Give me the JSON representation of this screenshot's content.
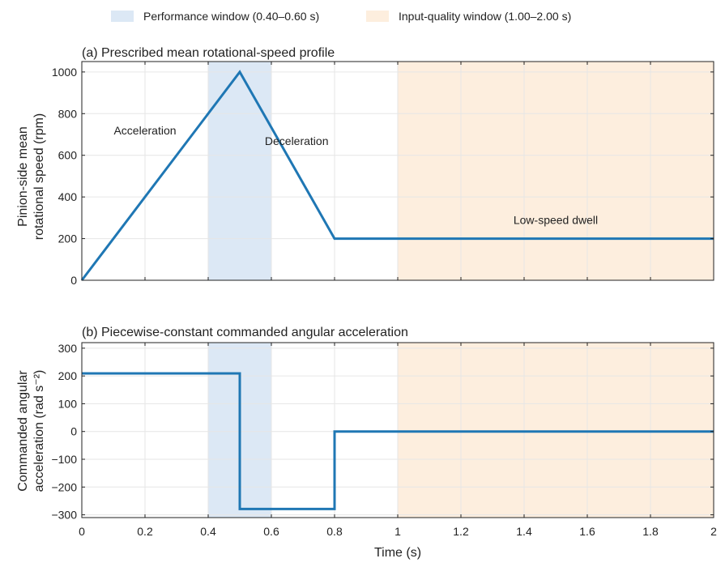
{
  "legend": {
    "items": [
      {
        "label": "Performance window (0.40–0.60 s)",
        "color": "#dce8f5"
      },
      {
        "label": "Input-quality window (1.00–2.00 s)",
        "color": "#fdeede"
      }
    ]
  },
  "colors": {
    "line": "#1f77b4",
    "performance_window": "#dce8f5",
    "input_window": "#fdeede",
    "grid": "#e6e6e6",
    "axis": "#222222"
  },
  "chart_data": [
    {
      "type": "line",
      "title": "(a) Prescribed mean rotational-speed profile",
      "xlabel": "",
      "ylabel_lines": [
        "Pinion-side mean",
        "rotational speed (rpm)"
      ],
      "xlim": [
        0,
        2
      ],
      "ylim": [
        0,
        1050
      ],
      "xticks": [
        0,
        0.2,
        0.4,
        0.6,
        0.8,
        1,
        1.2,
        1.4,
        1.6,
        1.8,
        2
      ],
      "yticks": [
        0,
        200,
        400,
        600,
        800,
        1000
      ],
      "ytick_labels": [
        "0",
        "200",
        "400",
        "600",
        "800",
        "1000"
      ],
      "show_xtick_labels": false,
      "grid": true,
      "shaded_regions": [
        {
          "x": [
            0.4,
            0.6
          ],
          "color": "#dce8f5"
        },
        {
          "x": [
            1.0,
            2.0
          ],
          "color": "#fdeede"
        }
      ],
      "series": [
        {
          "x": [
            0,
            0.5,
            0.8,
            2.0
          ],
          "y": [
            0,
            1000,
            200,
            200
          ]
        }
      ],
      "annotations": [
        {
          "text": "Acceleration",
          "x": 0.2,
          "y": 700
        },
        {
          "text": "Deceleration",
          "x": 0.68,
          "y": 650
        },
        {
          "text": "Low-speed dwell",
          "x": 1.5,
          "y": 270
        }
      ]
    },
    {
      "type": "line",
      "title": "(b) Piecewise-constant commanded angular acceleration",
      "xlabel": "Time (s)",
      "ylabel_lines": [
        "Commanded angular",
        "acceleration (rad s⁻²)"
      ],
      "xlim": [
        0,
        2
      ],
      "ylim": [
        -310,
        320
      ],
      "xticks": [
        0,
        0.2,
        0.4,
        0.6,
        0.8,
        1,
        1.2,
        1.4,
        1.6,
        1.8,
        2
      ],
      "xtick_labels": [
        "0",
        "0.2",
        "0.4",
        "0.6",
        "0.8",
        "1",
        "1.2",
        "1.4",
        "1.6",
        "1.8",
        "2"
      ],
      "yticks": [
        -300,
        -200,
        -100,
        0,
        100,
        200,
        300
      ],
      "ytick_labels": [
        "−300",
        "−200",
        "−100",
        "0",
        "100",
        "200",
        "300"
      ],
      "show_xtick_labels": true,
      "grid": true,
      "shaded_regions": [
        {
          "x": [
            0.4,
            0.6
          ],
          "color": "#dce8f5"
        },
        {
          "x": [
            1.0,
            2.0
          ],
          "color": "#fdeede"
        }
      ],
      "series": [
        {
          "x": [
            0,
            0.5,
            0.5,
            0.8,
            0.8,
            2.0
          ],
          "y": [
            209,
            209,
            -279,
            -279,
            0,
            0
          ]
        }
      ],
      "annotations": []
    }
  ]
}
